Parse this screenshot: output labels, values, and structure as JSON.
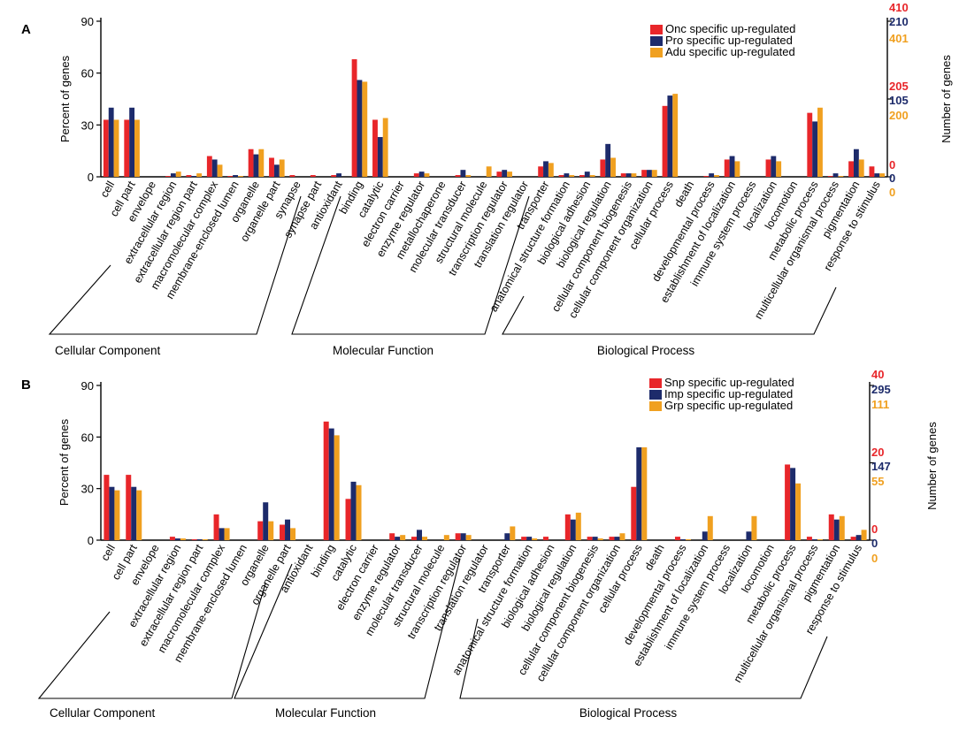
{
  "colors": {
    "series1": "#e8262a",
    "series2": "#1d2b6b",
    "series3": "#f0a020",
    "axis": "#000000"
  },
  "chart_data": [
    {
      "panel": "A",
      "type": "bar",
      "ylabel": "Percent of genes",
      "ylabel_right": "Number of genes",
      "ylim": [
        0,
        90
      ],
      "yticks": [
        0,
        30,
        60,
        90
      ],
      "legend_position": "top-right",
      "right_axis": {
        "series1": [
          "410",
          "205",
          "0"
        ],
        "series2": [
          "210",
          "105",
          "0"
        ],
        "series3": [
          "401",
          "200",
          "0"
        ]
      },
      "categories": [
        "cell",
        "cell part",
        "envelope",
        "extracellular region",
        "extracellular region part",
        "macromolecular complex",
        "membrane-enclosed lumen",
        "organelle",
        "organelle part",
        "synapse",
        "synapse part",
        "antioxidant",
        "binding",
        "catalytic",
        "electron carrier",
        "enzyme regulator",
        "metallochaperone",
        "molecular transducer",
        "structural molecule",
        "transcription regulator",
        "translation regulator",
        "transporter",
        "anatomical structure formation",
        "biological adhesion",
        "biological regulation",
        "cellular component biogenesis",
        "cellular component organization",
        "cellular process",
        "death",
        "developmental process",
        "establishment of localization",
        "immune system process",
        "localization",
        "locomotion",
        "metabolic process",
        "multicellular organismal process",
        "pigmentation",
        "response to stimulus"
      ],
      "series": [
        {
          "name": "Onc specific up-regulated",
          "values": [
            33,
            33,
            0,
            0.5,
            1,
            12,
            0.5,
            16,
            11,
            1,
            1,
            1,
            68,
            33,
            0,
            2,
            0,
            1,
            0,
            3,
            0,
            6,
            1,
            1,
            10,
            2,
            4,
            41,
            0,
            0.5,
            10,
            0,
            10,
            0,
            37,
            0.5,
            9,
            6
          ]
        },
        {
          "name": "Pro specific up-regulated",
          "values": [
            40,
            40,
            0,
            2,
            0.5,
            10,
            1,
            13,
            7,
            0,
            0,
            2,
            56,
            23,
            0,
            3,
            0,
            4,
            0,
            4,
            0,
            9,
            2,
            3,
            19,
            2,
            4,
            47,
            0,
            2,
            12,
            0,
            12,
            0,
            32,
            2,
            16,
            2
          ]
        },
        {
          "name": "Adu specific up-regulated",
          "values": [
            33,
            33,
            0,
            3,
            2,
            7,
            0.5,
            16,
            10,
            0,
            0,
            0,
            55,
            34,
            0,
            2,
            0,
            1,
            6,
            3,
            0,
            8,
            1,
            1,
            11,
            2,
            4,
            48,
            0,
            1,
            9,
            0,
            9,
            0,
            40,
            0.5,
            10,
            2
          ]
        }
      ],
      "groups": [
        "Cellular Component",
        "Molecular Function",
        "Biological Process"
      ]
    },
    {
      "panel": "B",
      "type": "bar",
      "ylabel": "Percent of genes",
      "ylabel_right": "Number of genes",
      "ylim": [
        0,
        90
      ],
      "yticks": [
        0,
        30,
        60,
        90
      ],
      "legend_position": "top-right",
      "right_axis": {
        "series1": [
          "40",
          "20",
          "0"
        ],
        "series2": [
          "295",
          "147",
          "0"
        ],
        "series3": [
          "111",
          "55",
          "0"
        ]
      },
      "categories": [
        "cell",
        "cell part",
        "envelope",
        "extracellular region",
        "extracellular region part",
        "macromolecular complex",
        "membrane-enclosed lumen",
        "organelle",
        "organelle part",
        "antioxidant",
        "binding",
        "catalytic",
        "electron carrier",
        "enzyme regulator",
        "molecular transducer",
        "structural molecule",
        "transcription regulator",
        "translation regulator",
        "transporter",
        "anatomical structure formation",
        "biological adhesion",
        "biological regulation",
        "cellular component biogenesis",
        "cellular component organization",
        "cellular process",
        "death",
        "developmental process",
        "establishment of localization",
        "immune system process",
        "localization",
        "locomotion",
        "metabolic process",
        "multicellular organismal process",
        "pigmentation",
        "response to stimulus"
      ],
      "series": [
        {
          "name": "Snp specific up-regulated",
          "values": [
            38,
            38,
            0,
            2,
            0.5,
            15,
            0,
            11,
            9,
            0,
            69,
            24,
            0,
            4,
            2,
            0,
            4,
            0,
            0,
            2,
            2,
            15,
            2,
            2,
            31,
            0,
            2,
            0,
            0,
            0,
            0,
            44,
            2,
            15,
            2
          ]
        },
        {
          "name": "Imp specific up-regulated",
          "values": [
            31,
            31,
            0,
            1,
            0.5,
            7,
            0,
            22,
            12,
            0,
            65,
            34,
            0,
            2,
            6,
            0,
            4,
            0,
            4,
            2,
            0,
            12,
            2,
            2,
            54,
            0,
            0.5,
            5,
            0,
            5,
            0,
            42,
            0.5,
            12,
            3
          ]
        },
        {
          "name": "Grp specific up-regulated",
          "values": [
            29,
            29,
            0,
            1,
            0.5,
            7,
            0,
            11,
            7,
            0,
            61,
            32,
            0,
            3,
            2,
            3,
            3,
            0,
            8,
            1,
            0,
            16,
            1,
            4,
            54,
            0,
            0.5,
            14,
            0,
            14,
            0,
            33,
            0.5,
            14,
            6
          ]
        }
      ],
      "groups": [
        "Cellular Component",
        "Molecular Function",
        "Biological Process"
      ]
    }
  ]
}
